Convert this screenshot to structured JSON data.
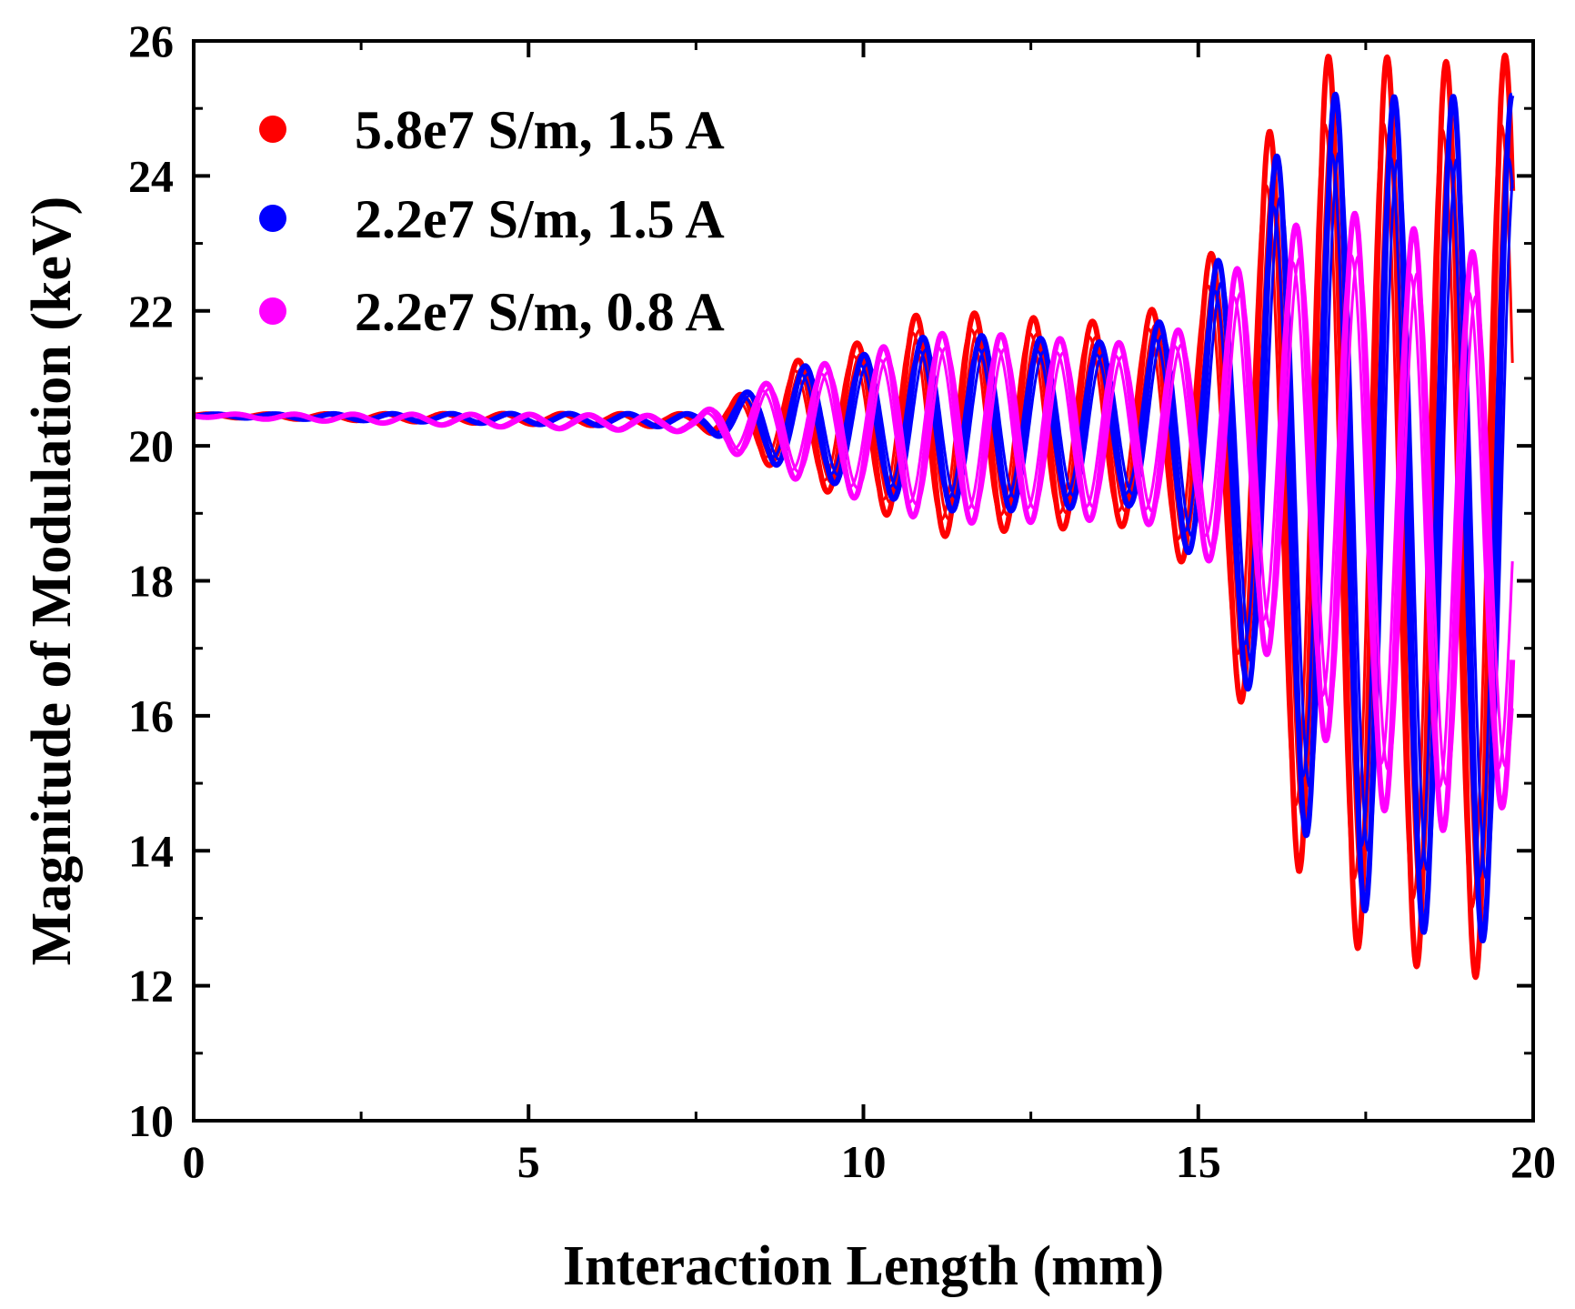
{
  "chart_data": {
    "type": "line",
    "title": "",
    "xlabel": "Interaction Length (mm)",
    "ylabel": "Magnitude of Modulation (keV)",
    "xlim": [
      0,
      20
    ],
    "ylim": [
      10,
      26
    ],
    "x_ticks": [
      "0",
      "5",
      "10",
      "15",
      "20"
    ],
    "y_ticks": [
      "10",
      "12",
      "14",
      "16",
      "18",
      "20",
      "22",
      "24",
      "26"
    ],
    "legend_position": "top-left",
    "series": [
      {
        "name": "5.8e7 S/m, 1.5 A",
        "color": "#ff0000",
        "phase": 0.0,
        "envelope": [
          [
            0,
            0.02
          ],
          [
            5,
            0.08
          ],
          [
            7.5,
            0.1
          ],
          [
            8,
            0.3
          ],
          [
            9,
            0.9
          ],
          [
            10,
            1.2
          ],
          [
            11,
            1.7
          ],
          [
            12,
            1.6
          ],
          [
            14,
            1.5
          ],
          [
            15,
            2.2
          ],
          [
            15.5,
            3.4
          ],
          [
            16,
            4.8
          ],
          [
            16.5,
            5.8
          ],
          [
            17,
            6.5
          ],
          [
            17.5,
            6.7
          ],
          [
            18.5,
            6.7
          ],
          [
            19.7,
            6.9
          ]
        ],
        "offset": [
          [
            0,
            20.45
          ],
          [
            15,
            20.3
          ],
          [
            16.5,
            19.5
          ],
          [
            18,
            19.0
          ],
          [
            19.7,
            18.9
          ]
        ]
      },
      {
        "name": "2.2e7 S/m, 1.5 A",
        "color": "#0000ff",
        "phase": 0.12,
        "envelope": [
          [
            0,
            0.02
          ],
          [
            5,
            0.08
          ],
          [
            7.5,
            0.1
          ],
          [
            8,
            0.3
          ],
          [
            9,
            0.8
          ],
          [
            10,
            1.0
          ],
          [
            11,
            1.3
          ],
          [
            12,
            1.3
          ],
          [
            14,
            1.2
          ],
          [
            15,
            2.0
          ],
          [
            15.5,
            3.0
          ],
          [
            16,
            4.2
          ],
          [
            16.5,
            5.2
          ],
          [
            17,
            5.8
          ],
          [
            17.5,
            6.1
          ],
          [
            18.5,
            6.2
          ],
          [
            19.7,
            6.3
          ]
        ],
        "offset": [
          [
            0,
            20.45
          ],
          [
            15,
            20.3
          ],
          [
            16.5,
            19.6
          ],
          [
            18,
            19.0
          ],
          [
            19.7,
            18.9
          ]
        ]
      },
      {
        "name": "2.2e7 S/m, 0.8 A",
        "color": "#ff00ff",
        "phase": 0.45,
        "envelope": [
          [
            0,
            0.02
          ],
          [
            5,
            0.1
          ],
          [
            7.5,
            0.12
          ],
          [
            8,
            0.4
          ],
          [
            9,
            0.8
          ],
          [
            10,
            1.1
          ],
          [
            11,
            1.4
          ],
          [
            12,
            1.4
          ],
          [
            14,
            1.3
          ],
          [
            15,
            1.6
          ],
          [
            15.5,
            2.5
          ],
          [
            16,
            3.0
          ],
          [
            16.5,
            3.5
          ],
          [
            17,
            4.0
          ],
          [
            17.5,
            4.3
          ],
          [
            18.5,
            4.5
          ],
          [
            19.7,
            3.9
          ]
        ],
        "offset": [
          [
            0,
            20.45
          ],
          [
            15,
            20.2
          ],
          [
            16.5,
            19.8
          ],
          [
            18,
            18.8
          ],
          [
            19.7,
            18.6
          ]
        ]
      }
    ]
  }
}
